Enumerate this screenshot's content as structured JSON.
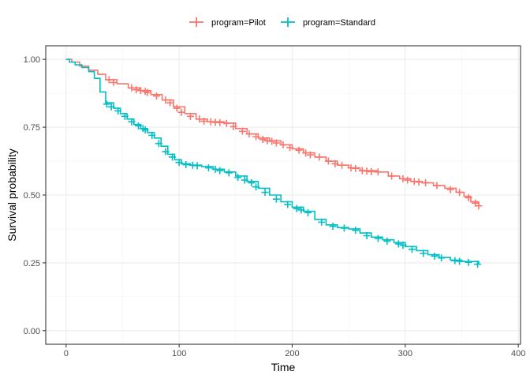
{
  "chart_data": {
    "type": "line",
    "subtype": "kaplan-meier step",
    "title": "",
    "xlabel": "Time",
    "ylabel": "Survival probability",
    "xlim": [
      -18,
      402
    ],
    "ylim": [
      -0.05,
      1.05
    ],
    "x_ticks": [
      0,
      100,
      200,
      300,
      400
    ],
    "x_tick_labels": [
      "0",
      "100",
      "200",
      "300",
      "400"
    ],
    "y_ticks": [
      0,
      0.25,
      0.5,
      0.75,
      1.0
    ],
    "y_tick_labels": [
      "0.00",
      "0.25",
      "0.50",
      "0.75",
      "1.00"
    ],
    "grid": true,
    "legend_position": "top",
    "series": [
      {
        "name": "program=Pilot",
        "color": "#F8766D",
        "steps": [
          [
            0,
            1.0
          ],
          [
            5,
            0.99
          ],
          [
            12,
            0.975
          ],
          [
            20,
            0.96
          ],
          [
            28,
            0.945
          ],
          [
            35,
            0.925
          ],
          [
            45,
            0.91
          ],
          [
            55,
            0.895
          ],
          [
            65,
            0.885
          ],
          [
            75,
            0.87
          ],
          [
            85,
            0.85
          ],
          [
            95,
            0.825
          ],
          [
            105,
            0.8
          ],
          [
            115,
            0.78
          ],
          [
            125,
            0.77
          ],
          [
            140,
            0.765
          ],
          [
            150,
            0.745
          ],
          [
            160,
            0.725
          ],
          [
            170,
            0.71
          ],
          [
            180,
            0.7
          ],
          [
            190,
            0.685
          ],
          [
            200,
            0.67
          ],
          [
            210,
            0.655
          ],
          [
            220,
            0.64
          ],
          [
            230,
            0.625
          ],
          [
            240,
            0.61
          ],
          [
            250,
            0.6
          ],
          [
            260,
            0.59
          ],
          [
            275,
            0.585
          ],
          [
            285,
            0.57
          ],
          [
            295,
            0.56
          ],
          [
            305,
            0.55
          ],
          [
            315,
            0.545
          ],
          [
            325,
            0.535
          ],
          [
            335,
            0.525
          ],
          [
            345,
            0.51
          ],
          [
            352,
            0.495
          ],
          [
            358,
            0.475
          ],
          [
            365,
            0.46
          ]
        ],
        "censored": [
          [
            38,
            0.925
          ],
          [
            42,
            0.915
          ],
          [
            58,
            0.895
          ],
          [
            62,
            0.888
          ],
          [
            66,
            0.885
          ],
          [
            70,
            0.882
          ],
          [
            72,
            0.878
          ],
          [
            80,
            0.865
          ],
          [
            88,
            0.85
          ],
          [
            92,
            0.84
          ],
          [
            98,
            0.82
          ],
          [
            102,
            0.805
          ],
          [
            110,
            0.79
          ],
          [
            118,
            0.78
          ],
          [
            122,
            0.772
          ],
          [
            128,
            0.77
          ],
          [
            132,
            0.768
          ],
          [
            136,
            0.767
          ],
          [
            142,
            0.764
          ],
          [
            148,
            0.752
          ],
          [
            156,
            0.735
          ],
          [
            162,
            0.725
          ],
          [
            168,
            0.715
          ],
          [
            174,
            0.705
          ],
          [
            178,
            0.7
          ],
          [
            182,
            0.698
          ],
          [
            186,
            0.692
          ],
          [
            192,
            0.685
          ],
          [
            198,
            0.675
          ],
          [
            206,
            0.665
          ],
          [
            212,
            0.655
          ],
          [
            216,
            0.648
          ],
          [
            224,
            0.64
          ],
          [
            232,
            0.625
          ],
          [
            238,
            0.615
          ],
          [
            244,
            0.61
          ],
          [
            252,
            0.6
          ],
          [
            256,
            0.598
          ],
          [
            262,
            0.59
          ],
          [
            266,
            0.588
          ],
          [
            270,
            0.586
          ],
          [
            276,
            0.585
          ],
          [
            288,
            0.57
          ],
          [
            298,
            0.56
          ],
          [
            302,
            0.555
          ],
          [
            308,
            0.55
          ],
          [
            312,
            0.548
          ],
          [
            318,
            0.545
          ],
          [
            328,
            0.535
          ],
          [
            340,
            0.52
          ],
          [
            348,
            0.51
          ],
          [
            356,
            0.49
          ],
          [
            362,
            0.47
          ],
          [
            365,
            0.46
          ]
        ]
      },
      {
        "name": "program=Standard",
        "color": "#00BFC4",
        "steps": [
          [
            0,
            1.0
          ],
          [
            3,
            0.99
          ],
          [
            8,
            0.98
          ],
          [
            14,
            0.97
          ],
          [
            20,
            0.955
          ],
          [
            25,
            0.93
          ],
          [
            30,
            0.88
          ],
          [
            35,
            0.84
          ],
          [
            42,
            0.82
          ],
          [
            48,
            0.8
          ],
          [
            54,
            0.78
          ],
          [
            60,
            0.76
          ],
          [
            66,
            0.745
          ],
          [
            72,
            0.73
          ],
          [
            78,
            0.71
          ],
          [
            84,
            0.68
          ],
          [
            90,
            0.65
          ],
          [
            96,
            0.63
          ],
          [
            102,
            0.615
          ],
          [
            110,
            0.61
          ],
          [
            120,
            0.605
          ],
          [
            130,
            0.595
          ],
          [
            140,
            0.585
          ],
          [
            150,
            0.57
          ],
          [
            160,
            0.55
          ],
          [
            170,
            0.525
          ],
          [
            180,
            0.5
          ],
          [
            190,
            0.475
          ],
          [
            200,
            0.455
          ],
          [
            210,
            0.44
          ],
          [
            220,
            0.41
          ],
          [
            230,
            0.39
          ],
          [
            240,
            0.38
          ],
          [
            250,
            0.375
          ],
          [
            260,
            0.36
          ],
          [
            270,
            0.345
          ],
          [
            280,
            0.335
          ],
          [
            290,
            0.325
          ],
          [
            300,
            0.31
          ],
          [
            310,
            0.295
          ],
          [
            320,
            0.28
          ],
          [
            330,
            0.27
          ],
          [
            340,
            0.26
          ],
          [
            350,
            0.255
          ],
          [
            365,
            0.245
          ]
        ],
        "censored": [
          [
            36,
            0.835
          ],
          [
            40,
            0.825
          ],
          [
            46,
            0.81
          ],
          [
            52,
            0.79
          ],
          [
            58,
            0.77
          ],
          [
            64,
            0.755
          ],
          [
            68,
            0.745
          ],
          [
            70,
            0.74
          ],
          [
            76,
            0.72
          ],
          [
            82,
            0.69
          ],
          [
            88,
            0.66
          ],
          [
            94,
            0.64
          ],
          [
            100,
            0.62
          ],
          [
            106,
            0.612
          ],
          [
            112,
            0.61
          ],
          [
            116,
            0.608
          ],
          [
            126,
            0.6
          ],
          [
            132,
            0.595
          ],
          [
            136,
            0.59
          ],
          [
            144,
            0.582
          ],
          [
            152,
            0.565
          ],
          [
            158,
            0.555
          ],
          [
            164,
            0.545
          ],
          [
            168,
            0.53
          ],
          [
            176,
            0.51
          ],
          [
            186,
            0.485
          ],
          [
            196,
            0.465
          ],
          [
            204,
            0.45
          ],
          [
            208,
            0.445
          ],
          [
            214,
            0.435
          ],
          [
            226,
            0.4
          ],
          [
            236,
            0.385
          ],
          [
            246,
            0.378
          ],
          [
            256,
            0.37
          ],
          [
            266,
            0.35
          ],
          [
            276,
            0.34
          ],
          [
            284,
            0.33
          ],
          [
            294,
            0.32
          ],
          [
            298,
            0.315
          ],
          [
            306,
            0.3
          ],
          [
            316,
            0.285
          ],
          [
            326,
            0.275
          ],
          [
            332,
            0.268
          ],
          [
            344,
            0.258
          ],
          [
            348,
            0.256
          ],
          [
            356,
            0.252
          ],
          [
            364,
            0.245
          ]
        ]
      }
    ]
  }
}
